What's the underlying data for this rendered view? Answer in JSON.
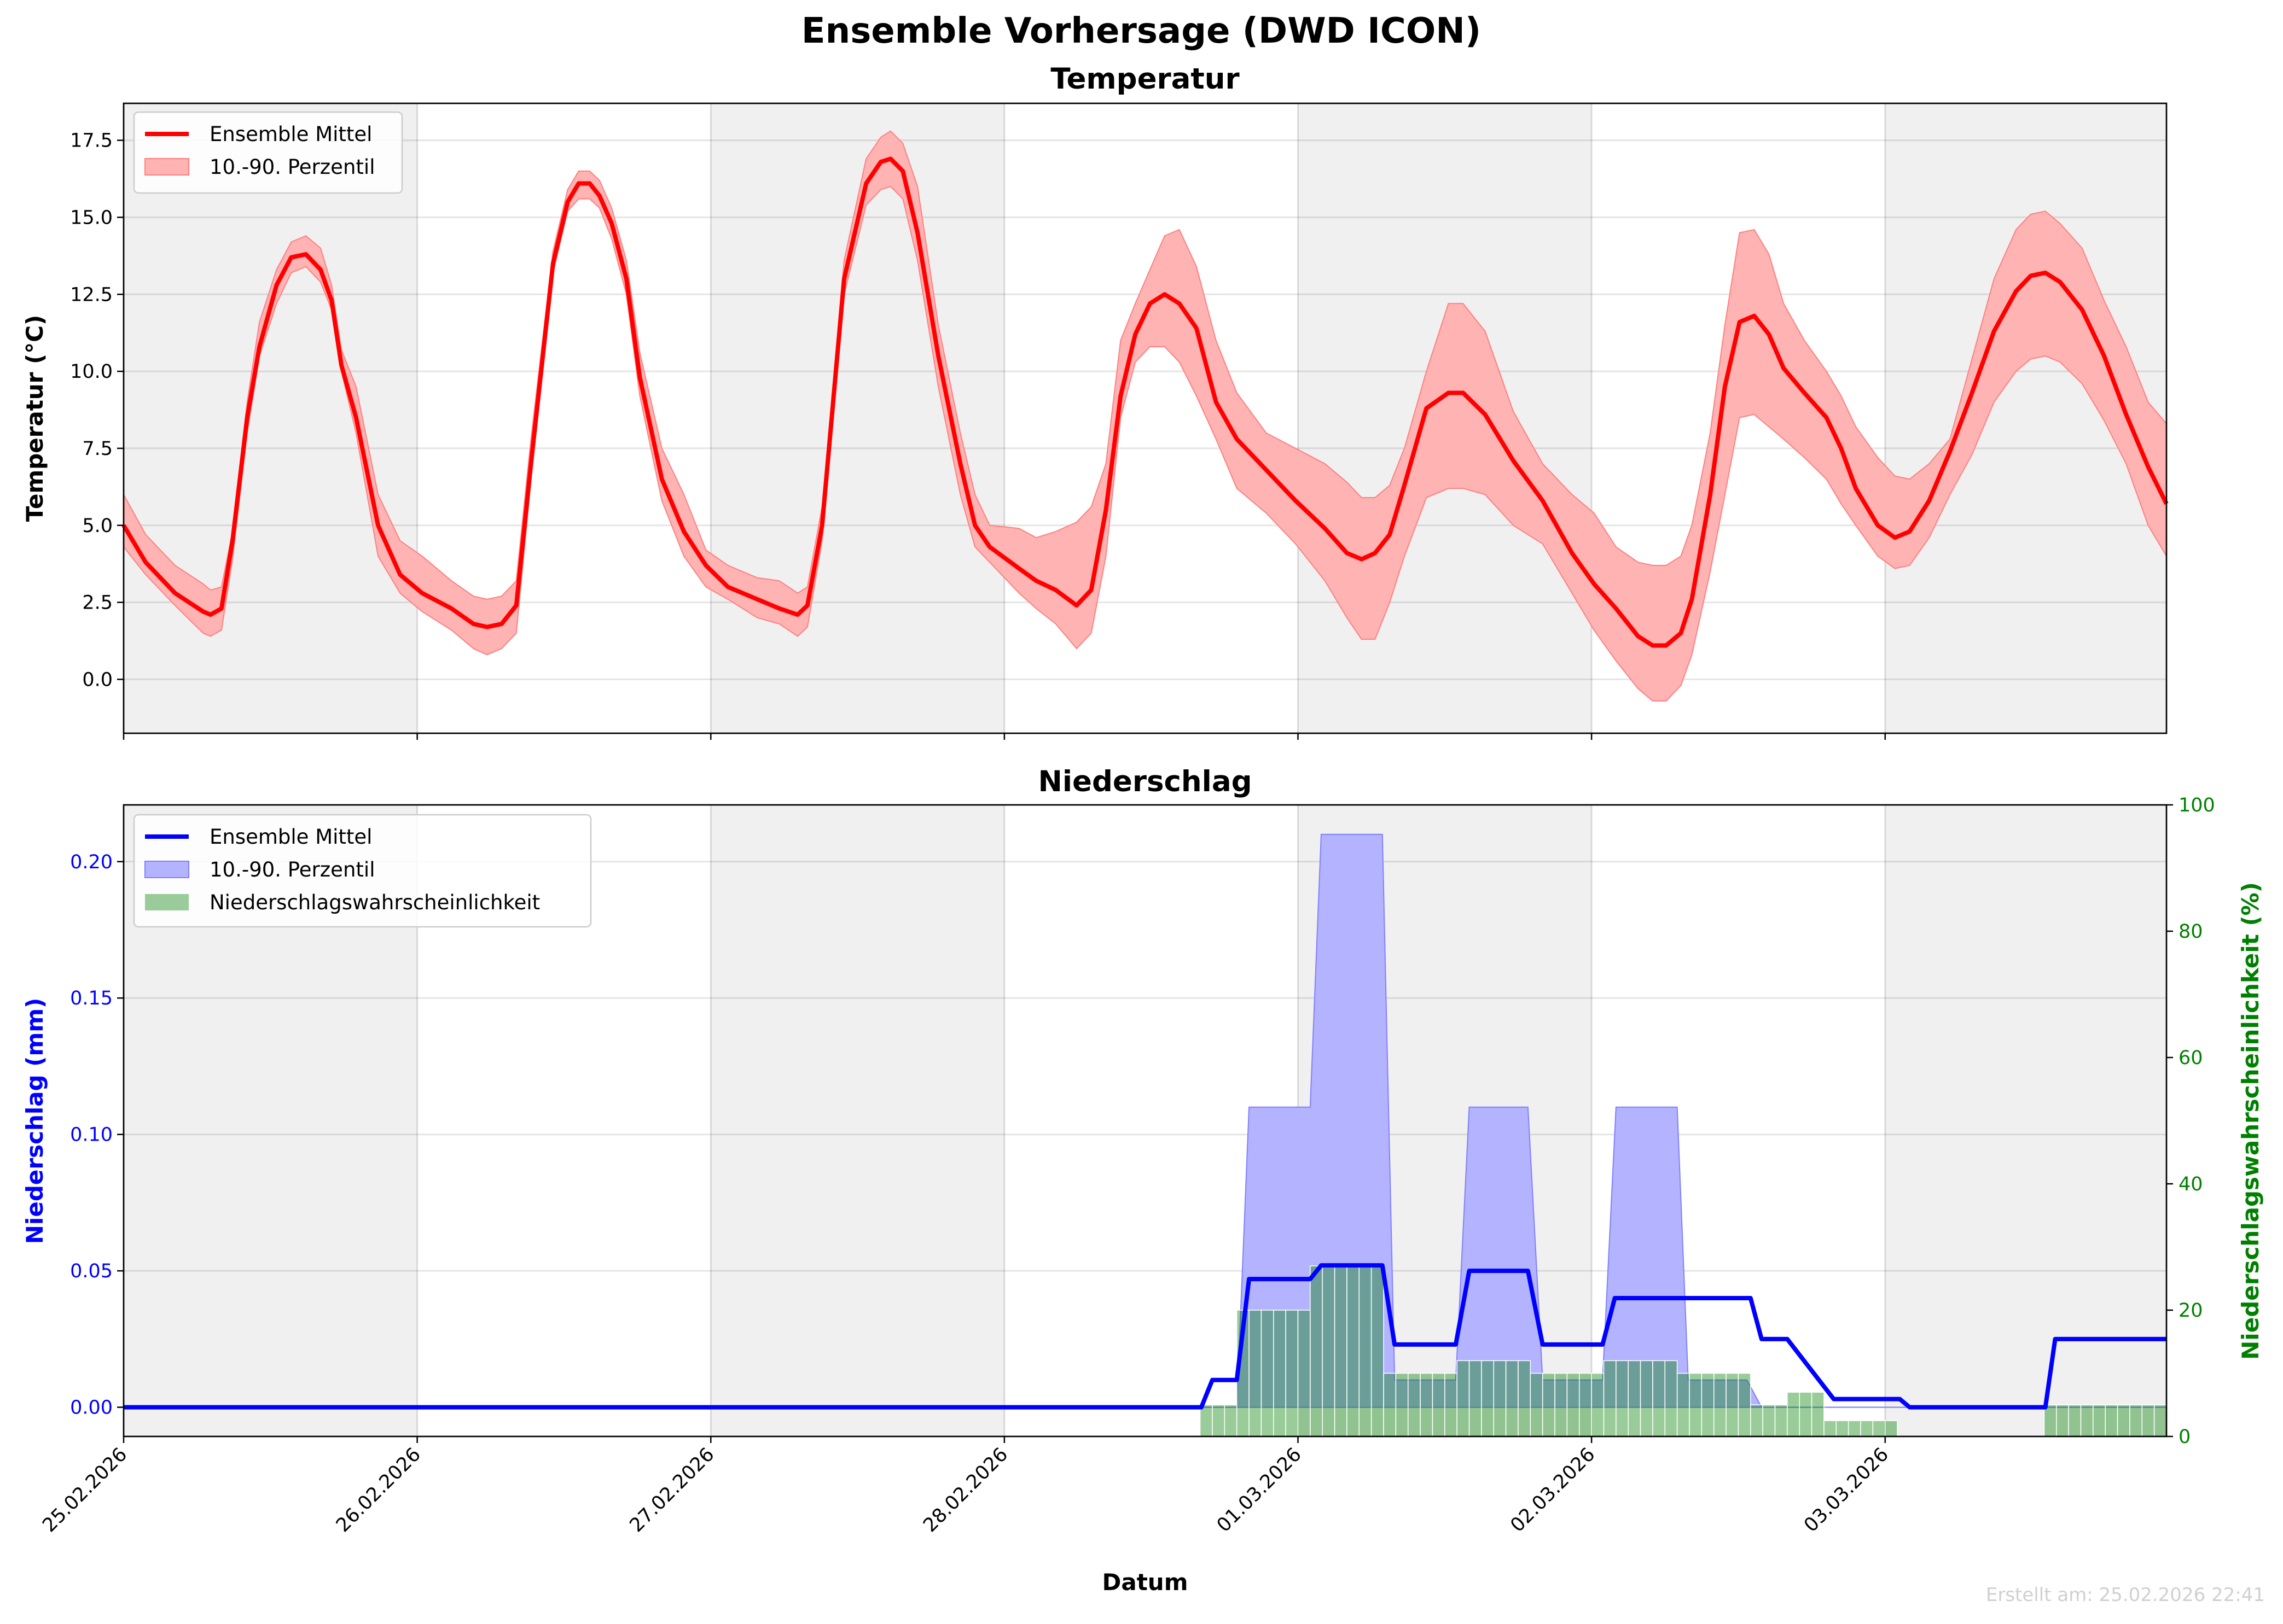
{
  "figure_title": "Ensemble Vorhersage (DWD ICON)",
  "footer": "Erstellt am: 25.02.2026 22:41",
  "colors": {
    "temp": "#ff0000",
    "temp_band": "#ffb3b3",
    "precip": "#0000ff",
    "precip_band": "#b3b3ff",
    "prob": "#99cc99",
    "prob_axis": "#008000",
    "shade": "#f0f0f0"
  },
  "chart_data": [
    {
      "type": "line",
      "title": "Temperatur",
      "xlabel": "",
      "ylabel": "Temperatur (°C)",
      "x_unit": "hours since 25.02.2026 00:00",
      "xlim": [
        0,
        167
      ],
      "ylim": [
        -1.75,
        18.7
      ],
      "yticks": [
        0.0,
        2.5,
        5.0,
        7.5,
        10.0,
        12.5,
        15.0,
        17.5
      ],
      "ytick_labels": [
        "0.0",
        "2.5",
        "5.0",
        "7.5",
        "10.0",
        "12.5",
        "15.0",
        "17.5"
      ],
      "grid": true,
      "legend": {
        "placement": "top-left",
        "entries": [
          "Ensemble Mittel",
          "10.-90. Perzentil"
        ]
      },
      "x": [
        0,
        1.8,
        4.2,
        6.5,
        7.1,
        8.0,
        8.9,
        10.1,
        11.1,
        12.5,
        13.7,
        14.9,
        16.1,
        17.0,
        17.8,
        19.0,
        20.8,
        22.6,
        24.4,
        26.8,
        28.6,
        29.7,
        30.9,
        32.1,
        33.3,
        35.1,
        36.3,
        37.2,
        38.1,
        38.9,
        39.9,
        41.1,
        42.2,
        44.0,
        45.8,
        47.6,
        49.4,
        51.8,
        53.6,
        55.1,
        55.9,
        57.1,
        58.9,
        60.7,
        61.9,
        62.7,
        63.7,
        64.9,
        66.6,
        68.4,
        69.6,
        70.8,
        73.2,
        74.6,
        76.2,
        77.9,
        79.1,
        80.3,
        81.5,
        82.7,
        83.9,
        85.1,
        86.3,
        87.7,
        89.3,
        91.0,
        93.4,
        95.8,
        98.2,
        100.0,
        101.2,
        102.3,
        103.5,
        104.7,
        106.5,
        108.3,
        109.5,
        111.3,
        113.6,
        116.0,
        118.4,
        120.2,
        122.0,
        123.8,
        125.0,
        126.1,
        127.3,
        128.2,
        129.7,
        130.9,
        132.1,
        133.3,
        134.5,
        135.7,
        137.4,
        139.2,
        140.4,
        141.6,
        143.4,
        144.8,
        146.0,
        147.6,
        149.3,
        151.1,
        152.9,
        154.7,
        155.9,
        157.1,
        158.3,
        160.1,
        161.9,
        163.7,
        165.5,
        167.0
      ],
      "series": [
        {
          "name": "Ensemble Mittel",
          "values": [
            5.0,
            3.8,
            2.8,
            2.2,
            2.1,
            2.3,
            4.5,
            8.5,
            10.8,
            12.8,
            13.7,
            13.8,
            13.3,
            12.3,
            10.2,
            8.5,
            5.0,
            3.4,
            2.8,
            2.3,
            1.8,
            1.7,
            1.8,
            2.4,
            7.0,
            13.5,
            15.5,
            16.1,
            16.1,
            15.7,
            14.8,
            13.0,
            9.8,
            6.5,
            4.8,
            3.7,
            3.0,
            2.6,
            2.3,
            2.1,
            2.4,
            5.0,
            13.0,
            16.1,
            16.8,
            16.9,
            16.5,
            14.5,
            10.5,
            7.0,
            5.0,
            4.3,
            3.6,
            3.2,
            2.9,
            2.4,
            2.9,
            5.5,
            9.2,
            11.2,
            12.2,
            12.5,
            12.2,
            11.4,
            9.0,
            7.8,
            6.8,
            5.8,
            4.9,
            4.1,
            3.9,
            4.1,
            4.7,
            6.3,
            8.8,
            9.3,
            9.3,
            8.6,
            7.1,
            5.8,
            4.1,
            3.1,
            2.3,
            1.4,
            1.1,
            1.1,
            1.5,
            2.6,
            6.0,
            9.5,
            11.6,
            11.8,
            11.2,
            10.1,
            9.3,
            8.5,
            7.5,
            6.2,
            5.0,
            4.6,
            4.8,
            5.8,
            7.4,
            9.3,
            11.3,
            12.6,
            13.1,
            13.2,
            12.9,
            12.0,
            10.5,
            8.6,
            6.9,
            5.7
          ]
        },
        {
          "name": "10. Perzentil",
          "values": [
            4.3,
            3.4,
            2.4,
            1.5,
            1.4,
            1.6,
            3.9,
            8.0,
            10.5,
            12.2,
            13.2,
            13.4,
            12.9,
            12.0,
            10.0,
            8.0,
            4.0,
            2.8,
            2.2,
            1.6,
            1.0,
            0.8,
            1.0,
            1.5,
            6.5,
            13.2,
            15.2,
            15.6,
            15.6,
            15.3,
            14.3,
            12.5,
            9.2,
            5.8,
            4.0,
            3.0,
            2.6,
            2.0,
            1.8,
            1.4,
            1.7,
            4.5,
            12.5,
            15.4,
            15.9,
            16.0,
            15.6,
            13.6,
            9.5,
            6.0,
            4.3,
            3.8,
            2.8,
            2.3,
            1.8,
            1.0,
            1.5,
            4.0,
            8.5,
            10.3,
            10.8,
            10.8,
            10.3,
            9.2,
            7.8,
            6.2,
            5.4,
            4.4,
            3.2,
            2.0,
            1.3,
            1.3,
            2.5,
            4.0,
            5.9,
            6.2,
            6.2,
            6.0,
            5.0,
            4.4,
            2.8,
            1.6,
            0.6,
            -0.3,
            -0.7,
            -0.7,
            -0.2,
            0.8,
            3.5,
            6.0,
            8.5,
            8.6,
            8.2,
            7.8,
            7.2,
            6.5,
            5.7,
            5.0,
            4.0,
            3.6,
            3.7,
            4.6,
            6.0,
            7.3,
            9.0,
            10.0,
            10.4,
            10.5,
            10.3,
            9.6,
            8.4,
            7.0,
            5.0,
            4.0
          ]
        },
        {
          "name": "90. Perzentil",
          "values": [
            6.0,
            4.7,
            3.7,
            3.1,
            2.9,
            3.0,
            4.8,
            9.0,
            11.6,
            13.3,
            14.2,
            14.4,
            14.0,
            12.8,
            10.7,
            9.5,
            6.0,
            4.5,
            4.0,
            3.2,
            2.7,
            2.6,
            2.7,
            3.2,
            7.8,
            13.9,
            15.9,
            16.5,
            16.5,
            16.2,
            15.3,
            13.6,
            10.6,
            7.5,
            6.0,
            4.2,
            3.7,
            3.3,
            3.2,
            2.8,
            3.0,
            5.6,
            13.6,
            16.9,
            17.6,
            17.8,
            17.4,
            16.0,
            11.5,
            8.0,
            6.0,
            5.0,
            4.9,
            4.6,
            4.8,
            5.1,
            5.6,
            7.0,
            11.0,
            12.2,
            13.3,
            14.4,
            14.6,
            13.4,
            11.0,
            9.3,
            8.0,
            7.5,
            7.0,
            6.4,
            5.9,
            5.9,
            6.3,
            7.5,
            10.0,
            12.2,
            12.2,
            11.3,
            8.7,
            7.0,
            6.0,
            5.4,
            4.3,
            3.8,
            3.7,
            3.7,
            4.0,
            5.0,
            8.0,
            11.5,
            14.5,
            14.6,
            13.8,
            12.2,
            11.0,
            10.0,
            9.2,
            8.2,
            7.2,
            6.6,
            6.5,
            7.0,
            7.8,
            10.4,
            13.0,
            14.6,
            15.1,
            15.2,
            14.8,
            14.0,
            12.3,
            10.8,
            9.0,
            8.3
          ]
        }
      ],
      "xticks": [
        0,
        24,
        48,
        72,
        96,
        120,
        144
      ],
      "xtick_labels": []
    },
    {
      "type": "line",
      "title": "Niederschlag",
      "xlabel": "Datum",
      "ylabel": "Niederschlag (mm)",
      "y2label": "Niederschlagswahrscheinlichkeit (%)",
      "x_unit": "hours since 25.02.2026 00:00",
      "xlim": [
        0,
        167
      ],
      "ylim": [
        -0.0107,
        0.2208
      ],
      "y2lim": [
        0,
        100
      ],
      "yticks": [
        0.0,
        0.05,
        0.1,
        0.15,
        0.2
      ],
      "ytick_labels": [
        "0.00",
        "0.05",
        "0.10",
        "0.15",
        "0.20"
      ],
      "y2ticks": [
        0,
        20,
        40,
        60,
        80,
        100
      ],
      "y2tick_labels": [
        "0",
        "20",
        "40",
        "60",
        "80",
        "100"
      ],
      "xticks": [
        0,
        24,
        48,
        72,
        96,
        120,
        144
      ],
      "xtick_labels": [
        "25.02.2026",
        "26.02.2026",
        "27.02.2026",
        "28.02.2026",
        "01.03.2026",
        "02.03.2026",
        "03.03.2026"
      ],
      "grid": true,
      "legend": {
        "placement": "top-left",
        "entries": [
          "Ensemble Mittel",
          "10.-90. Perzentil",
          "Niederschlagswahrscheinlichkeit"
        ]
      },
      "mean": {
        "x": [
          0,
          88.1,
          89.0,
          91.0,
          92.0,
          97.0,
          97.9,
          102.9,
          103.9,
          108.9,
          110.0,
          114.8,
          116.0,
          120.9,
          121.9,
          133.0,
          133.9,
          136.0,
          139.8,
          145.2,
          146.0,
          157.1,
          157.9,
          167
        ],
        "values": [
          0,
          0,
          0.01,
          0.01,
          0.047,
          0.047,
          0.052,
          0.052,
          0.023,
          0.023,
          0.05,
          0.05,
          0.023,
          0.023,
          0.04,
          0.04,
          0.025,
          0.025,
          0.003,
          0.003,
          0,
          0,
          0.025,
          0.025
        ]
      },
      "p90": {
        "x": [
          0,
          91.0,
          92.0,
          97.0,
          97.9,
          102.9,
          103.9,
          108.9,
          110.0,
          114.8,
          116.0,
          120.9,
          122.0,
          127.0,
          127.9,
          132.7,
          133.9,
          167
        ],
        "values": [
          0,
          0,
          0.11,
          0.11,
          0.21,
          0.21,
          0.01,
          0.01,
          0.11,
          0.11,
          0.01,
          0.01,
          0.11,
          0.11,
          0.01,
          0.01,
          0,
          0
        ]
      },
      "p10": {
        "x": [
          0,
          167
        ],
        "values": [
          0,
          0
        ]
      },
      "probability_segments": [
        {
          "start": 88,
          "end": 91,
          "pct": 5
        },
        {
          "start": 91,
          "end": 97,
          "pct": 20
        },
        {
          "start": 97,
          "end": 103,
          "pct": 27
        },
        {
          "start": 103,
          "end": 109,
          "pct": 10
        },
        {
          "start": 109,
          "end": 115,
          "pct": 12
        },
        {
          "start": 115,
          "end": 121,
          "pct": 10
        },
        {
          "start": 121,
          "end": 127,
          "pct": 12
        },
        {
          "start": 127,
          "end": 133,
          "pct": 10
        },
        {
          "start": 133,
          "end": 136,
          "pct": 5
        },
        {
          "start": 136,
          "end": 139,
          "pct": 7
        },
        {
          "start": 139,
          "end": 145,
          "pct": 2.5
        },
        {
          "start": 157,
          "end": 167,
          "pct": 5
        }
      ]
    }
  ]
}
